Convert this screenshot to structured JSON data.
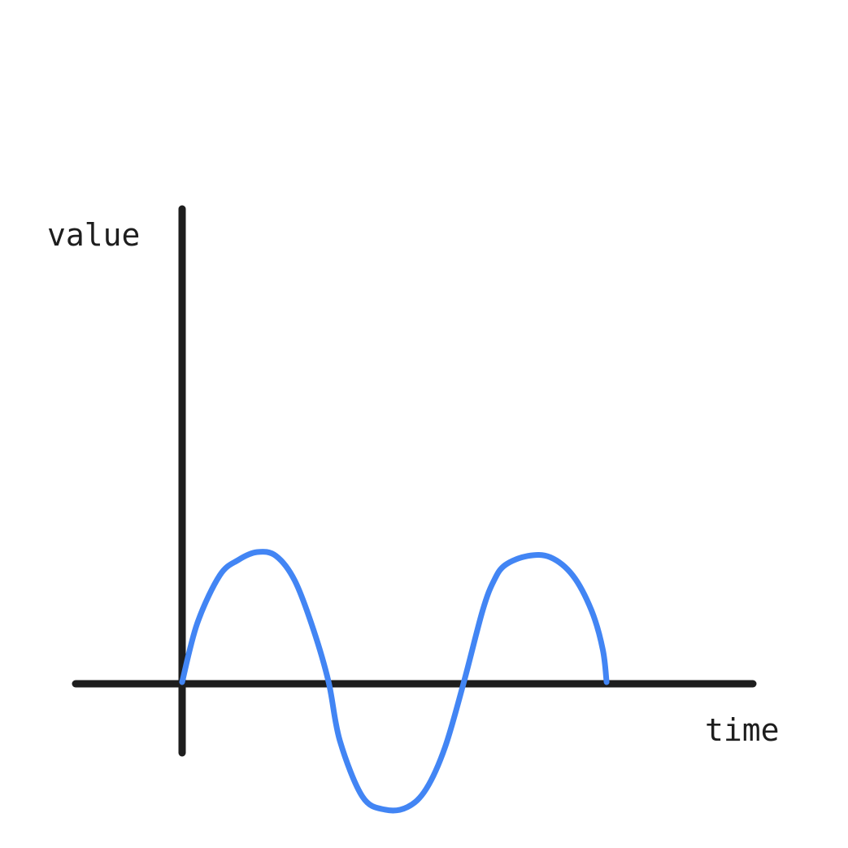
{
  "chart_data": {
    "type": "line",
    "title": "",
    "xlabel": "time",
    "ylabel": "value",
    "grid": false,
    "legend": "none",
    "axis_color": "#1e1e1e",
    "series": [
      {
        "color": "#4285f4",
        "x": [
          0.0,
          0.4,
          1.0,
          1.5,
          2.0,
          2.5,
          3.0,
          3.5,
          3.9,
          4.2,
          4.8,
          5.4,
          6.0,
          6.5,
          7.0,
          7.5,
          8.0,
          8.3,
          8.6,
          9.2,
          9.8,
          10.4,
          10.9,
          11.2,
          11.3
        ],
        "y": [
          0.0,
          0.45,
          0.82,
          0.94,
          1.0,
          0.97,
          0.78,
          0.4,
          0.0,
          -0.45,
          -0.88,
          -0.98,
          -0.96,
          -0.82,
          -0.5,
          0.0,
          0.55,
          0.78,
          0.9,
          0.97,
          0.96,
          0.82,
          0.55,
          0.25,
          0.0
        ]
      }
    ]
  }
}
